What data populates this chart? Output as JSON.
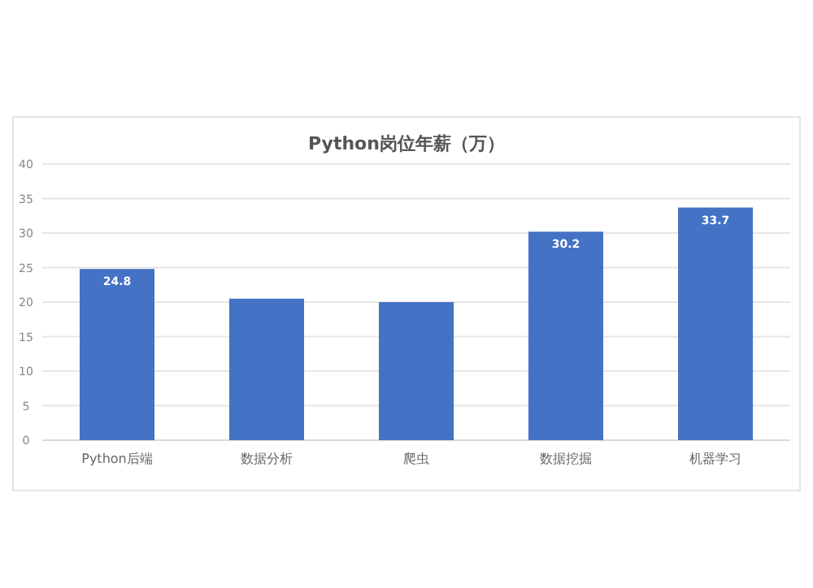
{
  "chart_data": {
    "type": "bar",
    "title": "Python岗位年薪（万）",
    "categories": [
      "Python后端",
      "数据分析",
      "爬虫",
      "数据挖掘",
      "机器学习"
    ],
    "values": [
      24.8,
      20.5,
      20.0,
      30.2,
      33.7
    ],
    "value_labels": [
      "24.8",
      null,
      null,
      "30.2",
      "33.7"
    ],
    "color": "#4472c4",
    "ylim": [
      0,
      40
    ],
    "yticks": [
      0,
      5,
      10,
      15,
      20,
      25,
      30,
      35,
      40
    ],
    "grid": "y"
  }
}
